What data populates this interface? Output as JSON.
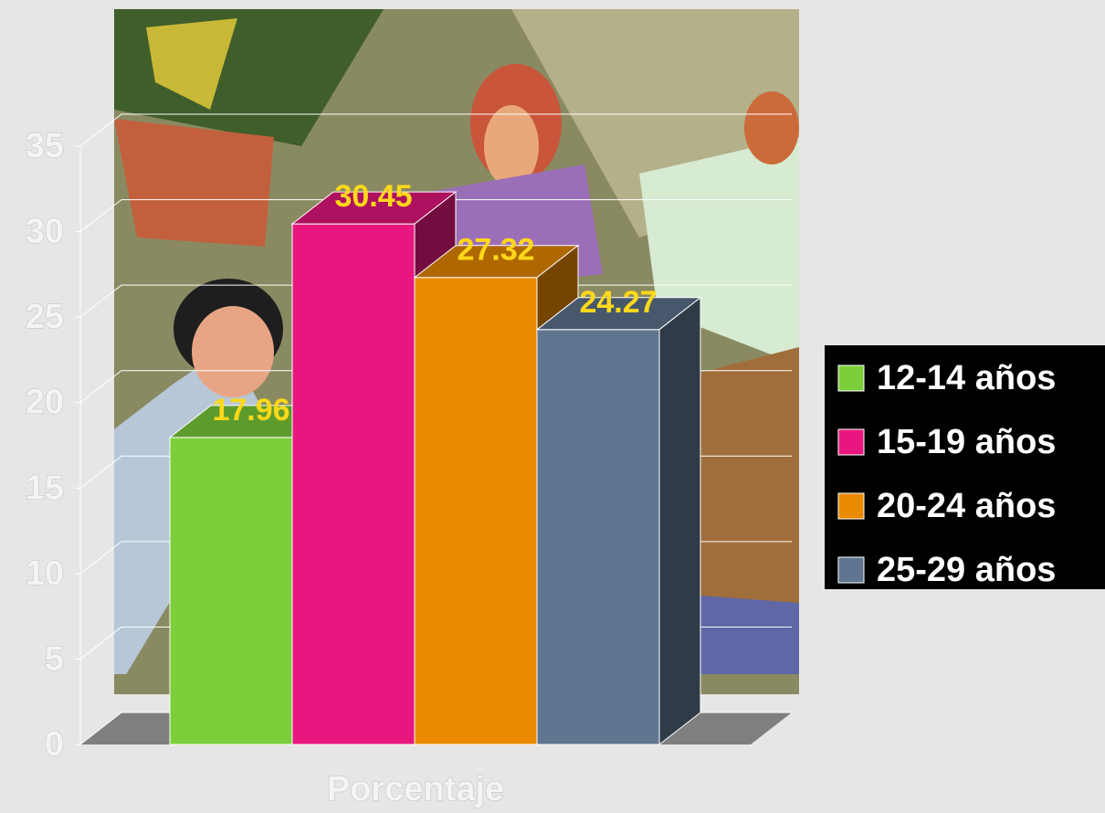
{
  "chart_data": {
    "type": "bar",
    "categories": [
      "Porcentaje"
    ],
    "series": [
      {
        "name": "12-14 años",
        "color": "#7ccf3a",
        "values": [
          17.96
        ]
      },
      {
        "name": "15-19 años",
        "color": "#e8177f",
        "values": [
          30.45
        ]
      },
      {
        "name": "20-24 años",
        "color": "#e98a00",
        "values": [
          27.32
        ]
      },
      {
        "name": "25-29 años",
        "color": "#5f7590",
        "values": [
          24.27
        ]
      }
    ],
    "ylim": [
      0,
      35
    ],
    "yticks": [
      0,
      5,
      10,
      15,
      20,
      25,
      30,
      35
    ],
    "grid": true,
    "value_label_color": "#ffd81a",
    "legend": "right"
  }
}
